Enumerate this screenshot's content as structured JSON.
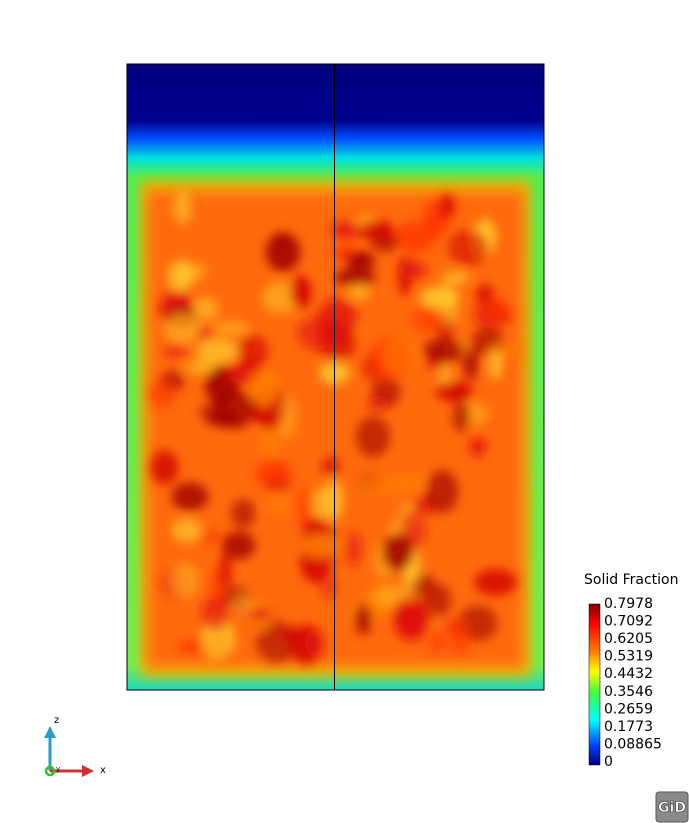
{
  "legend": {
    "title": "Solid Fraction",
    "labels": [
      "0.7978",
      "0.7092",
      "0.6205",
      "0.5319",
      "0.4432",
      "0.3546",
      "0.2659",
      "0.1773",
      "0.08865",
      "0"
    ]
  },
  "axes": {
    "z": "z",
    "x": "x",
    "y": "y"
  },
  "logo": "GiD"
}
